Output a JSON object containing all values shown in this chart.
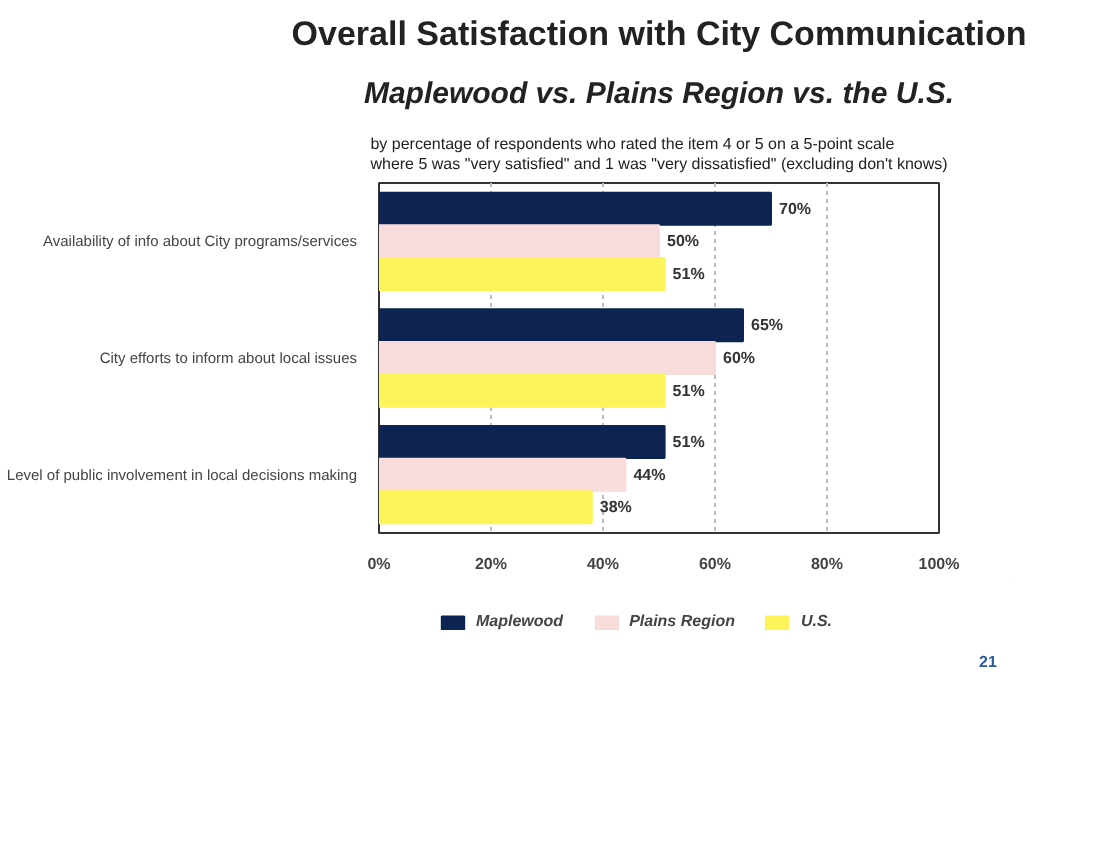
{
  "chart_data": {
    "type": "bar",
    "orientation": "horizontal",
    "title": "Overall Satisfaction with City Communication",
    "subtitle": "Maplewood vs. Plains Region vs. the U.S.",
    "annotations": [
      "by percentage of respondents who rated the item 4 or 5 on a 5-point scale\nwhere 5 was \"very satisfied\" and 1 was \"very dissatisfied\" (excluding don't knows)",
      "21"
    ],
    "categories": [
      "Availability of info about City programs/services",
      "City efforts to inform about local issues",
      "Level of public involvement in local decisions making"
    ],
    "series": [
      {
        "name": "Maplewood",
        "color": "#0d2452",
        "values": [
          70,
          65,
          51
        ],
        "value_labels": [
          "70%",
          "65%",
          "51%"
        ]
      },
      {
        "name": "Plains Region",
        "color": "#f8dcdc",
        "values": [
          50,
          60,
          44
        ],
        "value_labels": [
          "50%",
          "60%",
          "44%"
        ]
      },
      {
        "name": "U.S.",
        "color": "#fbf55a",
        "values": [
          51,
          51,
          38
        ],
        "value_labels": [
          "51%",
          "51%",
          "38%"
        ]
      }
    ],
    "xlim": [
      0,
      100
    ],
    "xticks": [
      {
        "value": 0,
        "label": "0%"
      },
      {
        "value": 20,
        "label": "20%"
      },
      {
        "value": 40,
        "label": "40%"
      },
      {
        "value": 60,
        "label": "60%"
      },
      {
        "value": 80,
        "label": "80%"
      },
      {
        "value": 100,
        "label": "100%"
      }
    ],
    "grid": "x",
    "legend": "bottom"
  }
}
